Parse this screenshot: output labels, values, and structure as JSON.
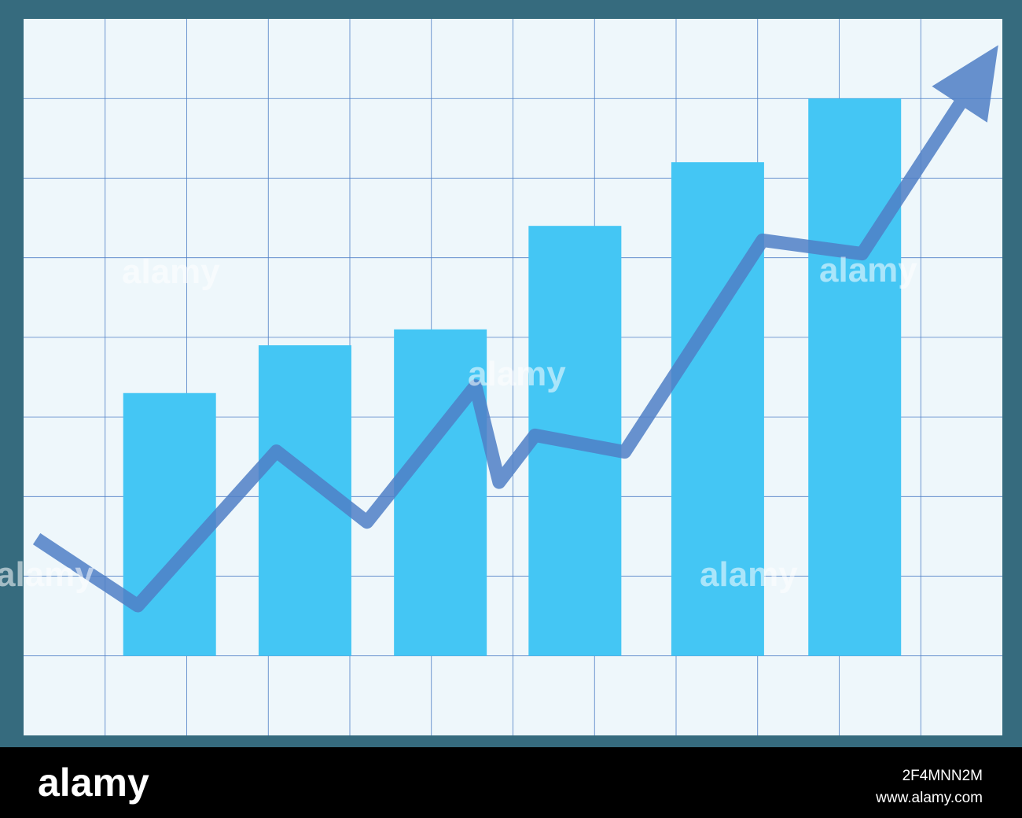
{
  "chart_data": {
    "type": "bar",
    "xlim": [
      0,
      12
    ],
    "ylim": [
      -1,
      8
    ],
    "grid": true,
    "series": [
      {
        "type": "bar",
        "color": "#44c6f4",
        "x": [
          1.79,
          3.45,
          5.11,
          6.76,
          8.51,
          10.19
        ],
        "values": [
          3.3,
          3.9,
          4.1,
          5.4,
          6.2,
          7.0
        ]
      },
      {
        "type": "line",
        "color": "#4f7fc6",
        "arrow": true,
        "x": [
          0.16,
          1.4,
          3.1,
          4.21,
          5.54,
          5.83,
          6.27,
          7.37,
          9.06,
          10.28,
          11.95
        ],
        "values": [
          1.47,
          0.63,
          2.57,
          1.68,
          3.39,
          2.18,
          2.77,
          2.56,
          5.22,
          5.05,
          7.67
        ]
      }
    ]
  },
  "watermark": "alamy",
  "footer": {
    "logo": "alamy",
    "image_id": "2F4MNN2M",
    "url": "www.alamy.com"
  }
}
